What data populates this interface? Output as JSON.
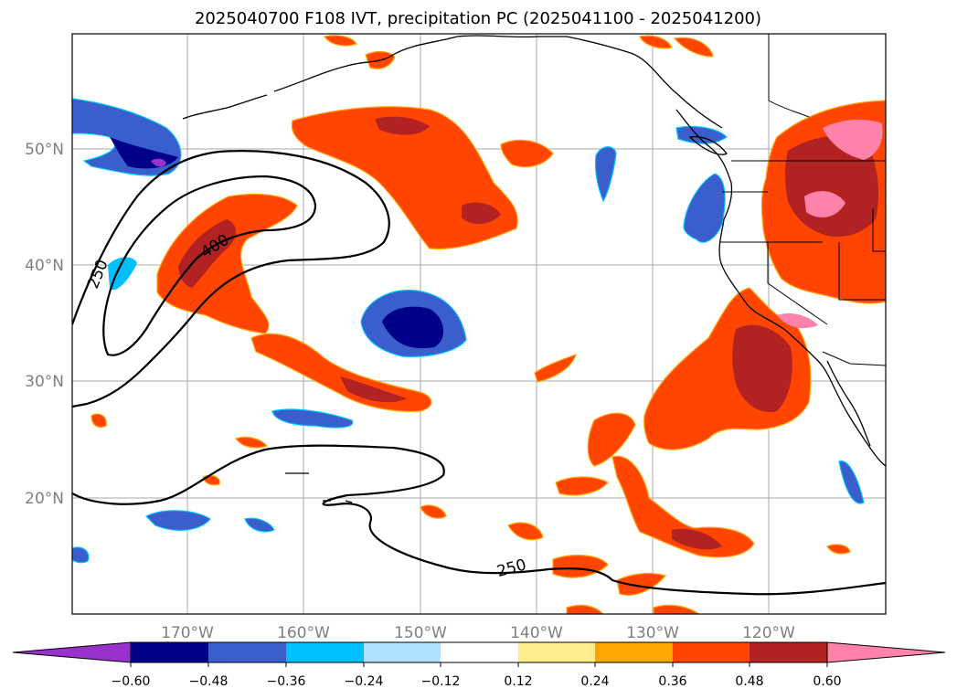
{
  "title": "2025040700 F108 IVT, precipitation PC (2025041100 - 2025041200)",
  "map": {
    "lat_labels": [
      "50°N",
      "40°N",
      "30°N",
      "20°N"
    ],
    "lon_labels": [
      "170°W",
      "160°W",
      "150°W",
      "140°W",
      "130°W",
      "120°W"
    ],
    "contour_labels": [
      "250",
      "400",
      "250"
    ],
    "grid": true
  },
  "colorbar": {
    "ticks": [
      "−0.60",
      "−0.48",
      "−0.36",
      "−0.24",
      "−0.12",
      "0.12",
      "0.24",
      "0.36",
      "0.48",
      "0.60"
    ],
    "colors": [
      "#9932cc",
      "#00008b",
      "#3a5fcd",
      "#00bfff",
      "#b0e2ff",
      "#ffffff",
      "#ffec8b",
      "#ffa500",
      "#ff4500",
      "#b22222",
      "#ff82ab"
    ]
  },
  "palette": {
    "purple": "#9932cc",
    "navy": "#00008b",
    "blue": "#3a5fcd",
    "cyan": "#00bfff",
    "lightblue": "#b0e2ff",
    "yellow": "#ffec8b",
    "orange": "#ffa500",
    "redorange": "#ff4500",
    "firebrick": "#b22222",
    "pink": "#ff82ab"
  }
}
